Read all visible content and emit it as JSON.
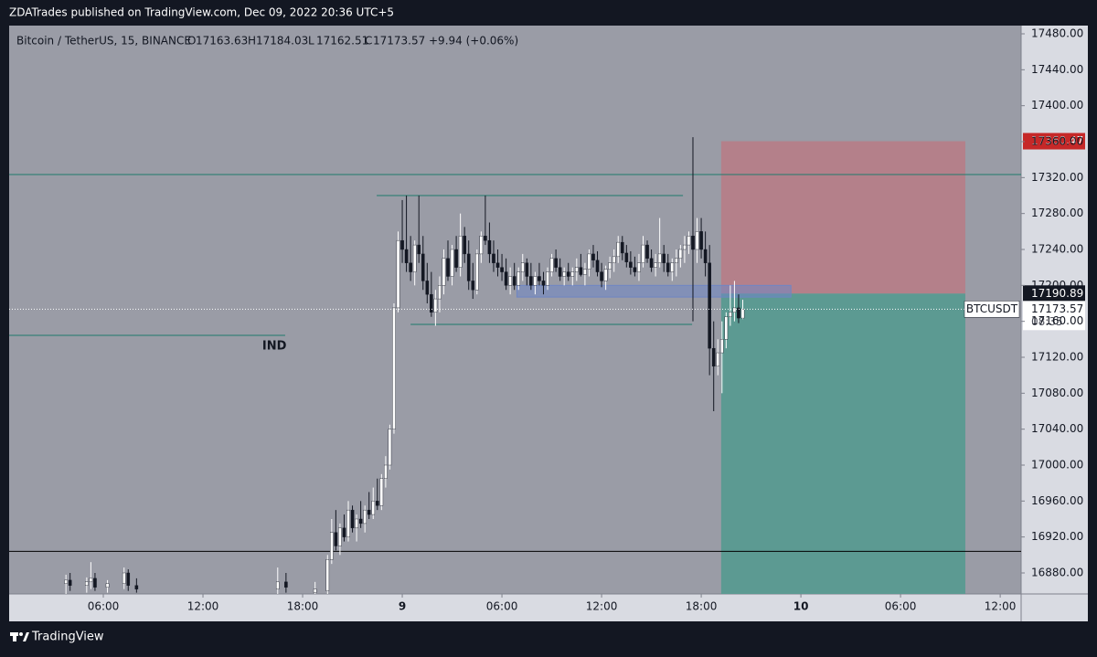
{
  "chart_data": {
    "type": "candlestick",
    "header": "ZDATrades published on TradingView.com, Dec 09, 2022 20:36 UTC+5",
    "title": "Bitcoin / TetherUS, 15, BINANCE",
    "ohlc_letters": [
      "O",
      "H",
      "L",
      "C"
    ],
    "change_label": "+9.94 (+0.06%)",
    "symbol": "BTCUSDT",
    "countdown": "08:35",
    "footer": "TradingView",
    "up_color": "#ffffff",
    "down_color": "#131722",
    "grid": false,
    "xlim": [
      0.33,
      61.26
    ],
    "ylim": [
      16856.6,
      17489.15
    ],
    "xticks": [
      {
        "value": 6,
        "label": "06:00"
      },
      {
        "value": 12,
        "label": "12:00"
      },
      {
        "value": 18,
        "label": "18:00"
      },
      {
        "value": 24,
        "label": "9"
      },
      {
        "value": 30,
        "label": "06:00"
      },
      {
        "value": 36,
        "label": "12:00"
      },
      {
        "value": 42,
        "label": "18:00"
      },
      {
        "value": 48,
        "label": "10"
      },
      {
        "value": 54,
        "label": "06:00"
      },
      {
        "value": 60,
        "label": "12:00"
      }
    ],
    "yticks": [
      {
        "value": 16880,
        "label": "16880.00"
      },
      {
        "value": 16920,
        "label": "16920.00"
      },
      {
        "value": 16960,
        "label": "16960.00"
      },
      {
        "value": 17000,
        "label": "17000.00"
      },
      {
        "value": 17040,
        "label": "17040.00"
      },
      {
        "value": 17080,
        "label": "17080.00"
      },
      {
        "value": 17120,
        "label": "17120.00"
      },
      {
        "value": 17160,
        "label": "17160.00"
      },
      {
        "value": 17200,
        "label": "17200.00"
      },
      {
        "value": 17240,
        "label": "17240.00"
      },
      {
        "value": 17280,
        "label": "17280.00"
      },
      {
        "value": 17320,
        "label": "17320.00"
      },
      {
        "value": 17360,
        "label": "17360.00"
      },
      {
        "value": 17400,
        "label": "17400.00"
      },
      {
        "value": 17440,
        "label": "17440.00"
      },
      {
        "value": 17480,
        "label": "17480.00"
      }
    ],
    "levels": [
      {
        "price": 17323.4,
        "x": [
          0.33,
          61.26
        ],
        "color": "#1f7a6c"
      },
      {
        "price": 17300,
        "x": [
          22.46,
          40.9
        ],
        "color": "#1f7a6c"
      },
      {
        "price": 17156.6,
        "x": [
          24.5,
          41.45
        ],
        "color": "#1f7a6c"
      },
      {
        "price": 17144.4,
        "x": [
          0.33,
          16.95
        ],
        "color": "#1f7a6c"
      },
      {
        "price": 16904,
        "x": [
          0.33,
          61.26
        ],
        "color": "#000000"
      }
    ],
    "annotation": {
      "text": "IND",
      "price": 17144.4,
      "x": 16.3
    },
    "zone": {
      "x": [
        30.9,
        47.4
      ],
      "price": [
        17187,
        17200
      ],
      "color": "#6f86c4"
    },
    "position": {
      "x": [
        43.2,
        57.9
      ],
      "stop": 17360.47,
      "entry": 17190.89,
      "target": 16800,
      "stop_color": "#b4808a",
      "target_color": "#5c9a92"
    },
    "candles": [
      {
        "x": 3.75,
        "open": 16868,
        "high": 16878,
        "low": 16855,
        "close": 16872
      },
      {
        "x": 4.0,
        "open": 16872,
        "high": 16880,
        "low": 16860,
        "close": 16866
      },
      {
        "x": 5.0,
        "open": 16866,
        "high": 16875,
        "low": 16858,
        "close": 16870
      },
      {
        "x": 5.25,
        "open": 16870,
        "high": 16892,
        "low": 16862,
        "close": 16874
      },
      {
        "x": 5.5,
        "open": 16874,
        "high": 16880,
        "low": 16860,
        "close": 16864
      },
      {
        "x": 6.25,
        "open": 16864,
        "high": 16872,
        "low": 16858,
        "close": 16868
      },
      {
        "x": 7.25,
        "open": 16868,
        "high": 16886,
        "low": 16862,
        "close": 16880
      },
      {
        "x": 7.5,
        "open": 16880,
        "high": 16884,
        "low": 16860,
        "close": 16866
      },
      {
        "x": 8.0,
        "open": 16866,
        "high": 16874,
        "low": 16858,
        "close": 16862
      },
      {
        "x": 16.5,
        "open": 16862,
        "high": 16886,
        "low": 16855,
        "close": 16870
      },
      {
        "x": 17.0,
        "open": 16870,
        "high": 16880,
        "low": 16858,
        "close": 16864
      },
      {
        "x": 18.75,
        "open": 16858,
        "high": 16870,
        "low": 16850,
        "close": 16862
      },
      {
        "x": 19.5,
        "open": 16860,
        "high": 16900,
        "low": 16855,
        "close": 16895
      },
      {
        "x": 19.75,
        "open": 16895,
        "high": 16940,
        "low": 16890,
        "close": 16925
      },
      {
        "x": 20.0,
        "open": 16925,
        "high": 16950,
        "low": 16905,
        "close": 16910
      },
      {
        "x": 20.25,
        "open": 16910,
        "high": 16935,
        "low": 16900,
        "close": 16930
      },
      {
        "x": 20.5,
        "open": 16930,
        "high": 16945,
        "low": 16915,
        "close": 16920
      },
      {
        "x": 20.75,
        "open": 16920,
        "high": 16960,
        "low": 16915,
        "close": 16950
      },
      {
        "x": 21.0,
        "open": 16950,
        "high": 16955,
        "low": 16925,
        "close": 16930
      },
      {
        "x": 21.25,
        "open": 16930,
        "high": 16945,
        "low": 16915,
        "close": 16940
      },
      {
        "x": 21.5,
        "open": 16940,
        "high": 16960,
        "low": 16930,
        "close": 16935
      },
      {
        "x": 21.75,
        "open": 16935,
        "high": 16955,
        "low": 16925,
        "close": 16950
      },
      {
        "x": 22.0,
        "open": 16950,
        "high": 16970,
        "low": 16940,
        "close": 16945
      },
      {
        "x": 22.25,
        "open": 16945,
        "high": 16975,
        "low": 16940,
        "close": 16960
      },
      {
        "x": 22.5,
        "open": 16960,
        "high": 16985,
        "low": 16950,
        "close": 16955
      },
      {
        "x": 22.75,
        "open": 16955,
        "high": 16990,
        "low": 16950,
        "close": 16985
      },
      {
        "x": 23.0,
        "open": 16985,
        "high": 17010,
        "low": 16975,
        "close": 17000
      },
      {
        "x": 23.25,
        "open": 17000,
        "high": 17045,
        "low": 16995,
        "close": 17040
      },
      {
        "x": 23.5,
        "open": 17040,
        "high": 17180,
        "low": 17035,
        "close": 17175
      },
      {
        "x": 23.75,
        "open": 17175,
        "high": 17260,
        "low": 17170,
        "close": 17250
      },
      {
        "x": 24.0,
        "open": 17250,
        "high": 17295,
        "low": 17225,
        "close": 17240
      },
      {
        "x": 24.25,
        "open": 17240,
        "high": 17300,
        "low": 17215,
        "close": 17225
      },
      {
        "x": 24.5,
        "open": 17225,
        "high": 17255,
        "low": 17205,
        "close": 17215
      },
      {
        "x": 24.75,
        "open": 17215,
        "high": 17250,
        "low": 17200,
        "close": 17245
      },
      {
        "x": 25.0,
        "open": 17245,
        "high": 17300,
        "low": 17225,
        "close": 17235
      },
      {
        "x": 25.25,
        "open": 17235,
        "high": 17255,
        "low": 17195,
        "close": 17205
      },
      {
        "x": 25.5,
        "open": 17205,
        "high": 17225,
        "low": 17180,
        "close": 17190
      },
      {
        "x": 25.75,
        "open": 17190,
        "high": 17215,
        "low": 17165,
        "close": 17170
      },
      {
        "x": 26.0,
        "open": 17170,
        "high": 17195,
        "low": 17155,
        "close": 17185
      },
      {
        "x": 26.25,
        "open": 17185,
        "high": 17210,
        "low": 17170,
        "close": 17200
      },
      {
        "x": 26.5,
        "open": 17200,
        "high": 17240,
        "low": 17190,
        "close": 17230
      },
      {
        "x": 26.75,
        "open": 17230,
        "high": 17250,
        "low": 17205,
        "close": 17210
      },
      {
        "x": 27.0,
        "open": 17210,
        "high": 17245,
        "low": 17200,
        "close": 17240
      },
      {
        "x": 27.25,
        "open": 17240,
        "high": 17255,
        "low": 17215,
        "close": 17220
      },
      {
        "x": 27.5,
        "open": 17220,
        "high": 17280,
        "low": 17210,
        "close": 17255
      },
      {
        "x": 27.75,
        "open": 17255,
        "high": 17265,
        "low": 17225,
        "close": 17235
      },
      {
        "x": 28.0,
        "open": 17235,
        "high": 17250,
        "low": 17195,
        "close": 17205
      },
      {
        "x": 28.25,
        "open": 17205,
        "high": 17225,
        "low": 17185,
        "close": 17195
      },
      {
        "x": 28.5,
        "open": 17195,
        "high": 17240,
        "low": 17190,
        "close": 17235
      },
      {
        "x": 28.75,
        "open": 17235,
        "high": 17260,
        "low": 17225,
        "close": 17255
      },
      {
        "x": 29.0,
        "open": 17255,
        "high": 17300,
        "low": 17245,
        "close": 17250
      },
      {
        "x": 29.25,
        "open": 17250,
        "high": 17270,
        "low": 17225,
        "close": 17235
      },
      {
        "x": 29.5,
        "open": 17235,
        "high": 17250,
        "low": 17215,
        "close": 17225
      },
      {
        "x": 29.75,
        "open": 17225,
        "high": 17240,
        "low": 17210,
        "close": 17220
      },
      {
        "x": 30.0,
        "open": 17220,
        "high": 17235,
        "low": 17205,
        "close": 17215
      },
      {
        "x": 30.25,
        "open": 17215,
        "high": 17230,
        "low": 17195,
        "close": 17200
      },
      {
        "x": 30.5,
        "open": 17200,
        "high": 17220,
        "low": 17190,
        "close": 17210
      },
      {
        "x": 30.75,
        "open": 17210,
        "high": 17225,
        "low": 17195,
        "close": 17200
      },
      {
        "x": 31.0,
        "open": 17200,
        "high": 17220,
        "low": 17195,
        "close": 17215
      },
      {
        "x": 31.25,
        "open": 17215,
        "high": 17235,
        "low": 17205,
        "close": 17225
      },
      {
        "x": 31.5,
        "open": 17225,
        "high": 17230,
        "low": 17200,
        "close": 17210
      },
      {
        "x": 31.75,
        "open": 17210,
        "high": 17225,
        "low": 17195,
        "close": 17200
      },
      {
        "x": 32.0,
        "open": 17200,
        "high": 17215,
        "low": 17190,
        "close": 17210
      },
      {
        "x": 32.25,
        "open": 17210,
        "high": 17225,
        "low": 17200,
        "close": 17205
      },
      {
        "x": 32.5,
        "open": 17205,
        "high": 17215,
        "low": 17190,
        "close": 17200
      },
      {
        "x": 32.75,
        "open": 17200,
        "high": 17220,
        "low": 17195,
        "close": 17215
      },
      {
        "x": 33.0,
        "open": 17215,
        "high": 17235,
        "low": 17210,
        "close": 17230
      },
      {
        "x": 33.25,
        "open": 17230,
        "high": 17240,
        "low": 17215,
        "close": 17220
      },
      {
        "x": 33.5,
        "open": 17220,
        "high": 17230,
        "low": 17205,
        "close": 17210
      },
      {
        "x": 33.75,
        "open": 17210,
        "high": 17220,
        "low": 17200,
        "close": 17215
      },
      {
        "x": 34.0,
        "open": 17215,
        "high": 17225,
        "low": 17205,
        "close": 17210
      },
      {
        "x": 34.25,
        "open": 17210,
        "high": 17220,
        "low": 17200,
        "close": 17215
      },
      {
        "x": 34.5,
        "open": 17215,
        "high": 17230,
        "low": 17205,
        "close": 17220
      },
      {
        "x": 34.75,
        "open": 17220,
        "high": 17235,
        "low": 17210,
        "close": 17212
      },
      {
        "x": 35.0,
        "open": 17212,
        "high": 17225,
        "low": 17200,
        "close": 17218
      },
      {
        "x": 35.25,
        "open": 17218,
        "high": 17240,
        "low": 17210,
        "close": 17235
      },
      {
        "x": 35.5,
        "open": 17235,
        "high": 17245,
        "low": 17220,
        "close": 17228
      },
      {
        "x": 35.75,
        "open": 17228,
        "high": 17238,
        "low": 17210,
        "close": 17215
      },
      {
        "x": 36.0,
        "open": 17215,
        "high": 17225,
        "low": 17198,
        "close": 17205
      },
      {
        "x": 36.25,
        "open": 17205,
        "high": 17222,
        "low": 17195,
        "close": 17218
      },
      {
        "x": 36.5,
        "open": 17218,
        "high": 17232,
        "low": 17208,
        "close": 17225
      },
      {
        "x": 36.75,
        "open": 17225,
        "high": 17240,
        "low": 17215,
        "close": 17232
      },
      {
        "x": 37.0,
        "open": 17232,
        "high": 17255,
        "low": 17225,
        "close": 17248
      },
      {
        "x": 37.25,
        "open": 17248,
        "high": 17255,
        "low": 17228,
        "close": 17236
      },
      {
        "x": 37.5,
        "open": 17236,
        "high": 17245,
        "low": 17220,
        "close": 17226
      },
      {
        "x": 37.75,
        "open": 17226,
        "high": 17238,
        "low": 17212,
        "close": 17220
      },
      {
        "x": 38.0,
        "open": 17220,
        "high": 17232,
        "low": 17210,
        "close": 17215
      },
      {
        "x": 38.25,
        "open": 17215,
        "high": 17235,
        "low": 17205,
        "close": 17225
      },
      {
        "x": 38.5,
        "open": 17225,
        "high": 17255,
        "low": 17220,
        "close": 17245
      },
      {
        "x": 38.75,
        "open": 17245,
        "high": 17250,
        "low": 17225,
        "close": 17230
      },
      {
        "x": 39.0,
        "open": 17230,
        "high": 17240,
        "low": 17215,
        "close": 17220
      },
      {
        "x": 39.25,
        "open": 17220,
        "high": 17235,
        "low": 17210,
        "close": 17225
      },
      {
        "x": 39.5,
        "open": 17225,
        "high": 17275,
        "low": 17220,
        "close": 17235
      },
      {
        "x": 39.75,
        "open": 17235,
        "high": 17245,
        "low": 17215,
        "close": 17225
      },
      {
        "x": 40.0,
        "open": 17225,
        "high": 17235,
        "low": 17210,
        "close": 17215
      },
      {
        "x": 40.25,
        "open": 17215,
        "high": 17230,
        "low": 17205,
        "close": 17225
      },
      {
        "x": 40.5,
        "open": 17225,
        "high": 17240,
        "low": 17210,
        "close": 17230
      },
      {
        "x": 40.75,
        "open": 17230,
        "high": 17245,
        "low": 17220,
        "close": 17240
      },
      {
        "x": 41.0,
        "open": 17240,
        "high": 17255,
        "low": 17225,
        "close": 17245
      },
      {
        "x": 41.25,
        "open": 17245,
        "high": 17260,
        "low": 17235,
        "close": 17255
      },
      {
        "x": 41.5,
        "open": 17255,
        "high": 17365,
        "low": 17160,
        "close": 17240
      },
      {
        "x": 41.75,
        "open": 17240,
        "high": 17275,
        "low": 17225,
        "close": 17260
      },
      {
        "x": 42.0,
        "open": 17260,
        "high": 17275,
        "low": 17230,
        "close": 17240
      },
      {
        "x": 42.25,
        "open": 17240,
        "high": 17260,
        "low": 17210,
        "close": 17225
      },
      {
        "x": 42.5,
        "open": 17225,
        "high": 17245,
        "low": 17100,
        "close": 17130
      },
      {
        "x": 42.75,
        "open": 17130,
        "high": 17160,
        "low": 17060,
        "close": 17110
      },
      {
        "x": 43.0,
        "open": 17110,
        "high": 17140,
        "low": 17100,
        "close": 17125
      },
      {
        "x": 43.25,
        "open": 17125,
        "high": 17160,
        "low": 17080,
        "close": 17140
      },
      {
        "x": 43.5,
        "open": 17140,
        "high": 17170,
        "low": 17130,
        "close": 17165
      },
      {
        "x": 43.75,
        "open": 17165,
        "high": 17200,
        "low": 17155,
        "close": 17170
      },
      {
        "x": 44.0,
        "open": 17170,
        "high": 17205,
        "low": 17160,
        "close": 17175
      },
      {
        "x": 44.25,
        "open": 17175,
        "high": 17190,
        "low": 17158,
        "close": 17163.63
      },
      {
        "x": 44.5,
        "open": 17163.63,
        "high": 17184.03,
        "low": 17162.51,
        "close": 17173.57
      }
    ]
  }
}
